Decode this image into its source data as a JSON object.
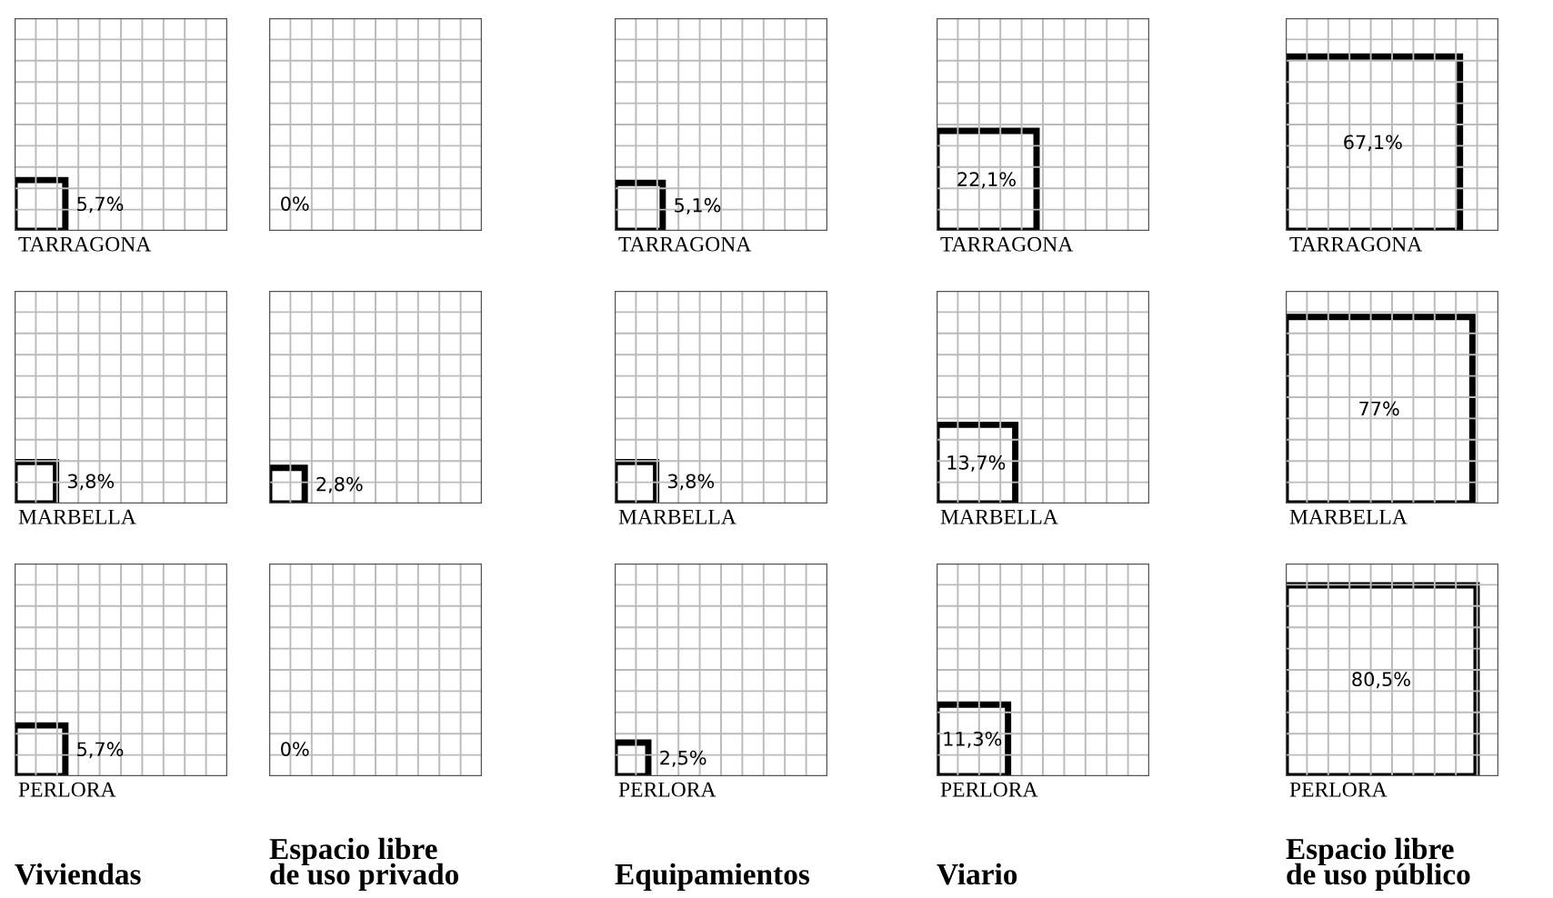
{
  "chart_data": [
    {
      "type": "other",
      "xlabel": "Viviendas",
      "categories": [
        "TARRAGONA",
        "MARBELLA",
        "PERLORA"
      ],
      "values": [
        5.7,
        3.8,
        5.7
      ],
      "value_labels": [
        "5,7%",
        "3,8%",
        "5,7%"
      ]
    },
    {
      "type": "other",
      "xlabel": "Espacio libre\nde uso privado",
      "categories": [
        null,
        null,
        null
      ],
      "values": [
        0,
        2.8,
        0
      ],
      "value_labels": [
        "0%",
        "2,8%",
        "0%"
      ]
    },
    {
      "type": "other",
      "xlabel": "Equipamientos",
      "categories": [
        "TARRAGONA",
        "MARBELLA",
        "PERLORA"
      ],
      "values": [
        5.1,
        3.8,
        2.5
      ],
      "value_labels": [
        "5,1%",
        "3,8%",
        "2,5%"
      ]
    },
    {
      "type": "other",
      "xlabel": "Viario",
      "categories": [
        "TARRAGONA",
        "MARBELLA",
        "PERLORA"
      ],
      "values": [
        22.1,
        13.7,
        11.3
      ],
      "value_labels": [
        "22,1%",
        "13,7%",
        "11,3%"
      ]
    },
    {
      "type": "other",
      "xlabel": "Espacio libre\nde uso público",
      "categories": [
        "TARRAGONA",
        "MARBELLA",
        "PERLORA"
      ],
      "values": [
        67.1,
        77,
        80.5
      ],
      "value_labels": [
        "67,1%",
        "77%",
        "80,5%"
      ]
    }
  ]
}
